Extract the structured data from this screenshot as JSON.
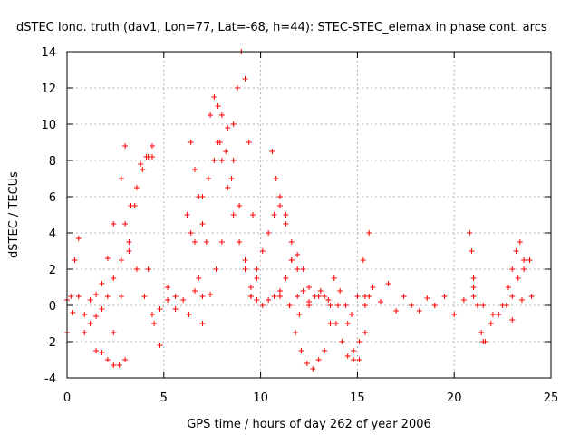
{
  "chart_data": {
    "type": "scatter",
    "title": "dSTEC Iono. truth (dav1, Lon=77, Lat=-68, h=44): STEC-STEC_elemax in phase cont. arcs",
    "xlabel": "GPS time / hours of day 262 of year 2006",
    "ylabel": "dSTEC  / TECUs",
    "xlim": [
      0,
      25
    ],
    "ylim": [
      -4,
      14
    ],
    "xticks": [
      "0",
      "5",
      "10",
      "15",
      "20",
      "25"
    ],
    "yticks": [
      "-4",
      "-2",
      "0",
      "2",
      "4",
      "6",
      "8",
      "10",
      "12",
      "14"
    ],
    "grid": true,
    "marker": "+",
    "color": "#ff0000",
    "series": [
      {
        "x": [
          0.0,
          0.2,
          0.4,
          0.6
        ],
        "y": [
          -1.5,
          0.5,
          2.5,
          3.7
        ]
      },
      {
        "x": [
          0.0,
          0.3,
          0.6,
          0.9,
          1.2,
          1.5,
          1.8,
          2.1,
          2.4,
          2.8,
          3.0
        ],
        "y": [
          0.3,
          -0.4,
          0.5,
          -0.5,
          0.3,
          0.6,
          1.2,
          2.6,
          4.5,
          7.0,
          8.8
        ]
      },
      {
        "x": [
          0.9,
          1.2,
          1.5,
          1.8,
          2.1,
          2.4,
          2.8
        ],
        "y": [
          -1.5,
          -1.0,
          -0.6,
          -0.2,
          0.5,
          1.5,
          2.5
        ]
      },
      {
        "x": [
          1.5,
          1.8,
          2.1,
          2.4,
          2.7,
          3.0
        ],
        "y": [
          -2.5,
          -2.6,
          -3.0,
          -3.3,
          -3.3,
          -3.0
        ]
      },
      {
        "x": [
          2.4,
          2.8,
          3.2,
          3.5,
          3.8,
          4.1,
          4.4
        ],
        "y": [
          -1.5,
          0.5,
          3.0,
          5.5,
          7.8,
          8.2,
          8.8
        ]
      },
      {
        "x": [
          3.0,
          3.3,
          3.6,
          3.9,
          4.2,
          4.4
        ],
        "y": [
          4.5,
          5.5,
          6.5,
          7.5,
          8.2,
          8.2
        ]
      },
      {
        "x": [
          3.2,
          3.6,
          4.0,
          4.4,
          4.8,
          5.2,
          5.6
        ],
        "y": [
          3.5,
          2.0,
          0.5,
          -0.5,
          -0.2,
          0.3,
          0.5
        ]
      },
      {
        "x": [
          4.2,
          4.5,
          4.8
        ],
        "y": [
          2.0,
          -1.0,
          -2.2
        ]
      },
      {
        "x": [
          4.8,
          5.2,
          5.6,
          6.0,
          6.3,
          6.6,
          7.0,
          7.4,
          7.7,
          8.0
        ],
        "y": [
          -0.2,
          1.0,
          -0.2,
          0.3,
          -0.5,
          0.8,
          -1.0,
          0.6,
          2.0,
          3.5
        ]
      },
      {
        "x": [
          6.2,
          6.4,
          6.6,
          6.8,
          7.0
        ],
        "y": [
          5.0,
          4.0,
          3.5,
          1.5,
          0.5
        ]
      },
      {
        "x": [
          6.4,
          6.6,
          6.8,
          7.0,
          7.2
        ],
        "y": [
          9.0,
          7.5,
          6.0,
          4.5,
          3.5
        ]
      },
      {
        "x": [
          7.0,
          7.3,
          7.6,
          7.9,
          8.2,
          8.5
        ],
        "y": [
          6.0,
          7.0,
          8.0,
          9.0,
          8.5,
          7.0
        ]
      },
      {
        "x": [
          7.4,
          7.6,
          7.8,
          8.0,
          8.3,
          8.6,
          8.9,
          9.2,
          9.5
        ],
        "y": [
          10.5,
          11.5,
          11.0,
          10.5,
          9.8,
          8.0,
          5.5,
          2.5,
          0.5
        ]
      },
      {
        "x": [
          7.8,
          8.0,
          8.3,
          8.6,
          8.9,
          9.2,
          9.5,
          9.8,
          10.1
        ],
        "y": [
          9.0,
          8.0,
          6.5,
          5.0,
          3.5,
          2.0,
          1.0,
          0.3,
          0.0
        ]
      },
      {
        "x": [
          8.6,
          8.8,
          9.0,
          9.2,
          9.4,
          9.6,
          9.8
        ],
        "y": [
          10.0,
          12.0,
          14.0,
          12.5,
          9.0,
          5.0,
          2.0
        ]
      },
      {
        "x": [
          9.5,
          9.8,
          10.1,
          10.4,
          10.7,
          11.0,
          11.3,
          11.6,
          11.9
        ],
        "y": [
          0.5,
          1.5,
          3.0,
          4.0,
          5.0,
          5.5,
          4.5,
          2.5,
          0.5
        ]
      },
      {
        "x": [
          10.4,
          10.7,
          11.0,
          11.3,
          11.6,
          11.9,
          12.2,
          12.5,
          12.8,
          13.1
        ],
        "y": [
          0.3,
          0.5,
          0.8,
          1.5,
          2.5,
          2.8,
          2.0,
          1.0,
          0.5,
          0.8
        ]
      },
      {
        "x": [
          10.6,
          10.8,
          11.0,
          11.3,
          11.6,
          11.9,
          12.2,
          12.5
        ],
        "y": [
          8.5,
          7.0,
          6.0,
          5.0,
          3.5,
          2.0,
          0.8,
          0.2
        ]
      },
      {
        "x": [
          11.5,
          11.8,
          12.1,
          12.4,
          12.7,
          13.0,
          13.3,
          13.6
        ],
        "y": [
          0.0,
          -1.5,
          -2.5,
          -3.2,
          -3.5,
          -3.0,
          -2.5,
          -1.0
        ]
      },
      {
        "x": [
          11.0,
          11.5,
          12.0,
          12.5,
          13.0,
          13.5,
          14.0
        ],
        "y": [
          0.5,
          0.0,
          -0.5,
          0.0,
          0.5,
          0.3,
          0.0
        ]
      },
      {
        "x": [
          13.3,
          13.6,
          13.9,
          14.2,
          14.5,
          14.8,
          15.1,
          15.4
        ],
        "y": [
          0.5,
          0.0,
          -1.0,
          -2.0,
          -2.8,
          -3.0,
          -2.0,
          0.0
        ]
      },
      {
        "x": [
          13.8,
          14.1,
          14.4,
          14.7,
          15.0,
          15.3,
          15.6
        ],
        "y": [
          1.5,
          0.8,
          0.0,
          -0.5,
          0.5,
          2.5,
          4.0
        ]
      },
      {
        "x": [
          14.5,
          14.8,
          15.1,
          15.4,
          15.6
        ],
        "y": [
          -1.0,
          -2.5,
          -3.0,
          -1.5,
          0.5
        ]
      },
      {
        "x": [
          15.4,
          15.8,
          16.2,
          16.6,
          17.0,
          17.4,
          17.8,
          18.2,
          18.6,
          19.0
        ],
        "y": [
          0.5,
          1.0,
          0.2,
          1.2,
          -0.3,
          0.5,
          0.0,
          -0.3,
          0.4,
          0.0
        ]
      },
      {
        "x": [
          19.0,
          19.5,
          20.0,
          20.5,
          21.0
        ],
        "y": [
          0.0,
          0.5,
          -0.5,
          0.3,
          1.0
        ]
      },
      {
        "x": [
          20.8,
          20.9,
          21.0,
          21.2,
          21.4,
          21.6
        ],
        "y": [
          4.0,
          3.0,
          1.5,
          0.0,
          -1.5,
          -2.0
        ]
      },
      {
        "x": [
          21.5,
          21.9,
          22.3,
          22.7,
          23.0,
          23.3,
          23.6,
          23.9
        ],
        "y": [
          -2.0,
          -1.0,
          -0.5,
          0.0,
          0.5,
          1.5,
          2.0,
          2.5
        ]
      },
      {
        "x": [
          21.0,
          21.5,
          22.0,
          22.5,
          23.0,
          23.5,
          24.0
        ],
        "y": [
          0.5,
          0.0,
          -0.5,
          0.0,
          -0.8,
          0.3,
          0.5
        ]
      },
      {
        "x": [
          22.8,
          23.0,
          23.2,
          23.4,
          23.6
        ],
        "y": [
          1.0,
          2.0,
          3.0,
          3.5,
          2.5
        ]
      }
    ]
  }
}
